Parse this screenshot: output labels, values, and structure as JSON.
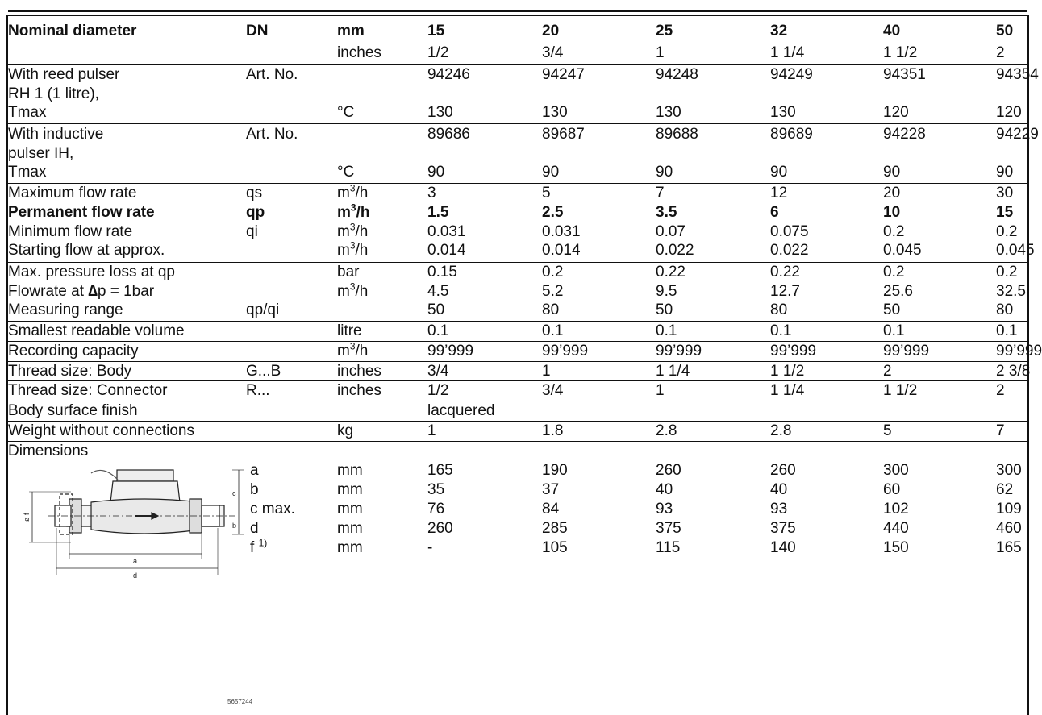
{
  "table": {
    "header": {
      "label": "Nominal diameter",
      "dn": "DN",
      "mm": "mm",
      "inches": "inches",
      "sizes_mm": [
        "15",
        "20",
        "25",
        "32",
        "40",
        "50"
      ],
      "sizes_in": [
        "1/2",
        "3/4",
        "1",
        "1 1/4",
        "1 1/2",
        "2"
      ]
    },
    "reed": {
      "l1": "With reed pulser",
      "l2": "RH 1 (1 litre),",
      "l3": "Tmax",
      "artno": "Art. No.",
      "unit": "°C",
      "art_values": [
        "94246",
        "94247",
        "94248",
        "94249",
        "94351",
        "94354"
      ],
      "t_values": [
        "130",
        "130",
        "130",
        "130",
        "120",
        "120"
      ]
    },
    "inductive": {
      "l1": "With inductive",
      "l2": "pulser IH,",
      "l3": "Tmax",
      "artno": "Art. No.",
      "unit": "°C",
      "art_values": [
        "89686",
        "89687",
        "89688",
        "89689",
        "94228",
        "94229"
      ],
      "t_values": [
        "90",
        "90",
        "90",
        "90",
        "90",
        "90"
      ]
    },
    "max_flow": {
      "label": "Maximum flow rate",
      "sym": "qs",
      "unit_base": "m",
      "unit_sup": "3",
      "unit_rest": "/h",
      "values": [
        "3",
        "5",
        "7",
        "12",
        "20",
        "30"
      ]
    },
    "perm_flow": {
      "label": "Permanent flow rate",
      "sym": "qp",
      "unit_base": "m",
      "unit_sup": "3",
      "unit_rest": "/h",
      "values": [
        "1.5",
        "2.5",
        "3.5",
        "6",
        "10",
        "15"
      ]
    },
    "min_flow": {
      "label": "Minimum flow rate",
      "sym": "qi",
      "unit_base": "m",
      "unit_sup": "3",
      "unit_rest": "/h",
      "values": [
        "0.031",
        "0.031",
        "0.07",
        "0.075",
        "0.2",
        "0.2"
      ]
    },
    "start_flow": {
      "label": "Starting flow at approx.",
      "unit_base": "m",
      "unit_sup": "3",
      "unit_rest": "/h",
      "values": [
        "0.014",
        "0.014",
        "0.022",
        "0.022",
        "0.045",
        "0.045"
      ]
    },
    "pressure_loss": {
      "label": "Max. pressure loss at qp",
      "unit": "bar",
      "values": [
        "0.15",
        "0.2",
        "0.22",
        "0.22",
        "0.2",
        "0.2"
      ]
    },
    "flowrate_dp": {
      "label_pre": "Flowrate at ",
      "label_delta": "∆",
      "label_post": "p = 1bar",
      "unit_base": "m",
      "unit_sup": "3",
      "unit_rest": "/h",
      "values": [
        "4.5",
        "5.2",
        "9.5",
        "12.7",
        "25.6",
        "32.5"
      ]
    },
    "meas_range": {
      "label": "Measuring range",
      "sym": "qp/qi",
      "values": [
        "50",
        "80",
        "50",
        "80",
        "50",
        "80"
      ]
    },
    "smallest_vol": {
      "label": "Smallest readable volume",
      "unit": "litre",
      "values": [
        "0.1",
        "0.1",
        "0.1",
        "0.1",
        "0.1",
        "0.1"
      ]
    },
    "rec_capacity": {
      "label": "Recording capacity",
      "unit_base": "m",
      "unit_sup": "3",
      "unit_rest": "/h",
      "values": [
        "99’999",
        "99’999",
        "99’999",
        "99’999",
        "99’999",
        "99’999"
      ]
    },
    "thread_body": {
      "label": "Thread size: Body",
      "sym": "G...B",
      "unit": "inches",
      "values": [
        "3/4",
        "1",
        "1 1/4",
        "1 1/2",
        "2",
        "2 3/8"
      ]
    },
    "thread_conn": {
      "label": "Thread size: Connector",
      "sym": "R...",
      "unit": "inches",
      "values": [
        "1/2",
        "3/4",
        "1",
        "1 1/4",
        "1 1/2",
        "2"
      ]
    },
    "finish": {
      "label": "Body surface finish",
      "value": "lacquered"
    },
    "weight": {
      "label": "Weight without connections",
      "unit": "kg",
      "values": [
        "1",
        "1.8",
        "2.8",
        "2.8",
        "5",
        "7"
      ]
    },
    "dimensions": {
      "label": "Dimensions",
      "drawing_code": "5657244",
      "drawing_labels": {
        "a": "a",
        "b": "b",
        "c": "c",
        "d": "d",
        "f": "ø f"
      },
      "rows": [
        {
          "name": "a",
          "sup": "",
          "unit": "mm",
          "values": [
            "165",
            "190",
            "260",
            "260",
            "300",
            "300"
          ]
        },
        {
          "name": "b",
          "sup": "",
          "unit": "mm",
          "values": [
            "35",
            "37",
            "40",
            "40",
            "60",
            "62"
          ]
        },
        {
          "name": "c max.",
          "sup": "",
          "unit": "mm",
          "values": [
            "76",
            "84",
            "93",
            "93",
            "102",
            "109"
          ]
        },
        {
          "name": "d",
          "sup": "",
          "unit": "mm",
          "values": [
            "260",
            "285",
            "375",
            "375",
            "440",
            "460"
          ]
        },
        {
          "name": "f",
          "sup": "1)",
          "unit": "mm",
          "values": [
            "-",
            "105",
            "115",
            "140",
            "150",
            "165"
          ]
        }
      ]
    }
  }
}
